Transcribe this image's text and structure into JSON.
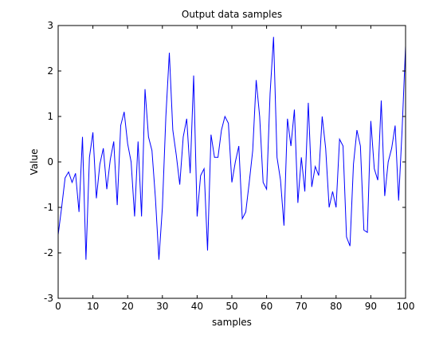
{
  "chart_data": {
    "type": "line",
    "title": "Output data samples",
    "xlabel": "samples",
    "ylabel": "Value",
    "xlim": [
      0,
      100
    ],
    "ylim": [
      -3,
      3
    ],
    "xticks": [
      0,
      10,
      20,
      30,
      40,
      50,
      60,
      70,
      80,
      90,
      100
    ],
    "yticks": [
      -3,
      -2,
      -1,
      0,
      1,
      2,
      3
    ],
    "grid": false,
    "line_color": "#0000ff",
    "series": [
      {
        "x": [
          0,
          1,
          2,
          3,
          4,
          5,
          6,
          7,
          8,
          9,
          10,
          11,
          12,
          13,
          14,
          15,
          16,
          17,
          18,
          19,
          20,
          21,
          22,
          23,
          24,
          25,
          26,
          27,
          28,
          29,
          30,
          31,
          32,
          33,
          34,
          35,
          36,
          37,
          38,
          39,
          40,
          41,
          42,
          43,
          44,
          45,
          46,
          47,
          48,
          49,
          50,
          51,
          52,
          53,
          54,
          55,
          56,
          57,
          58,
          59,
          60,
          61,
          62,
          63,
          64,
          65,
          66,
          67,
          68,
          69,
          70,
          71,
          72,
          73,
          74,
          75,
          76,
          77,
          78,
          79,
          80,
          81,
          82,
          83,
          84,
          85,
          86,
          87,
          88,
          89,
          90,
          91,
          92,
          93,
          94,
          95,
          96,
          97,
          98,
          99,
          100
        ],
        "y": [
          -1.6,
          -1.0,
          -0.35,
          -0.22,
          -0.45,
          -0.25,
          -1.1,
          0.55,
          -2.15,
          0.1,
          0.65,
          -0.8,
          -0.05,
          0.3,
          -0.6,
          0.05,
          0.45,
          -0.95,
          0.8,
          1.1,
          0.4,
          0.0,
          -1.2,
          0.45,
          -1.2,
          1.6,
          0.55,
          0.25,
          -0.8,
          -2.15,
          -1.0,
          1.0,
          2.4,
          0.7,
          0.15,
          -0.5,
          0.55,
          0.95,
          -0.25,
          1.9,
          -1.2,
          -0.3,
          -0.15,
          -1.95,
          0.6,
          0.1,
          0.1,
          0.7,
          1.0,
          0.85,
          -0.45,
          0.0,
          0.35,
          -1.25,
          -1.1,
          -0.45,
          0.25,
          1.8,
          1.0,
          -0.45,
          -0.6,
          1.5,
          2.75,
          0.1,
          -0.4,
          -1.4,
          0.95,
          0.35,
          1.15,
          -0.9,
          0.1,
          -0.65,
          1.3,
          -0.55,
          -0.1,
          -0.3,
          1.0,
          0.3,
          -1.0,
          -0.65,
          -1.0,
          0.5,
          0.35,
          -1.65,
          -1.85,
          -0.05,
          0.7,
          0.35,
          -1.5,
          -1.55,
          0.9,
          -0.15,
          -0.4,
          1.35,
          -0.75,
          0.0,
          0.3,
          0.8,
          -0.85,
          0.7,
          2.55
        ]
      }
    ]
  }
}
